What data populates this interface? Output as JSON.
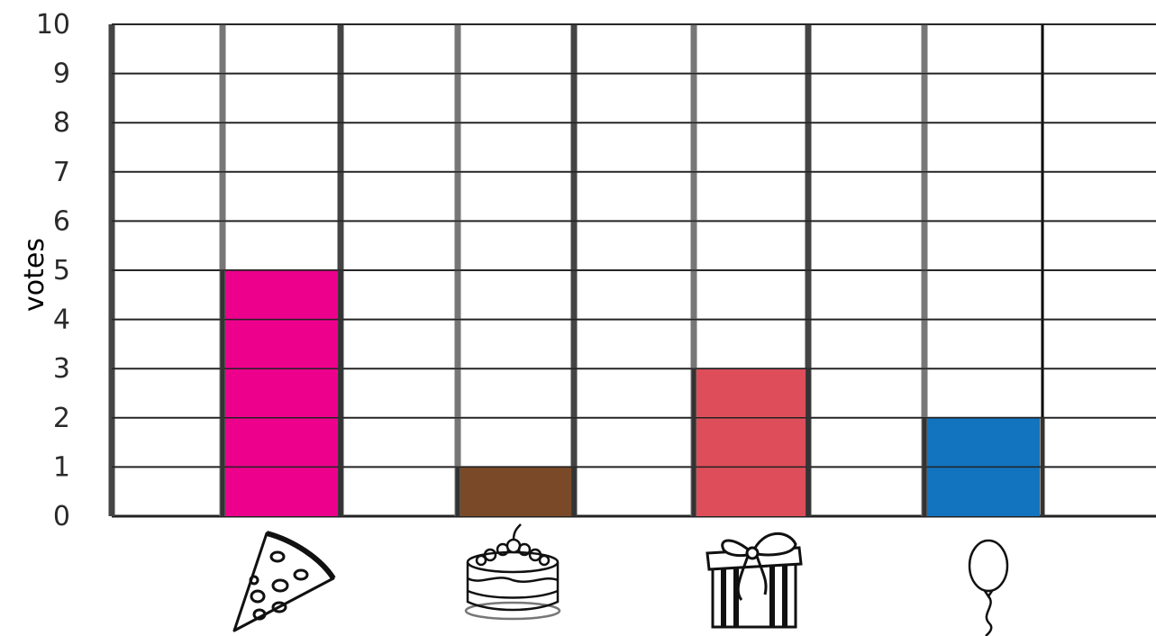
{
  "chart_data": {
    "type": "bar",
    "title": "",
    "xlabel": "",
    "ylabel": "votes",
    "ylim": [
      0,
      10
    ],
    "yticks": [
      "0",
      "1",
      "2",
      "3",
      "4",
      "5",
      "6",
      "7",
      "8",
      "9",
      "10"
    ],
    "categories": [
      "pizza",
      "cake",
      "gift",
      "balloon"
    ],
    "values": [
      5,
      1,
      3,
      2
    ],
    "colors": [
      "#ec008c",
      "#7a4a28",
      "#dd4e5a",
      "#1273bf"
    ],
    "category_icons": [
      "pizza-icon",
      "cake-icon",
      "gift-icon",
      "balloon-icon"
    ],
    "grid": true
  }
}
